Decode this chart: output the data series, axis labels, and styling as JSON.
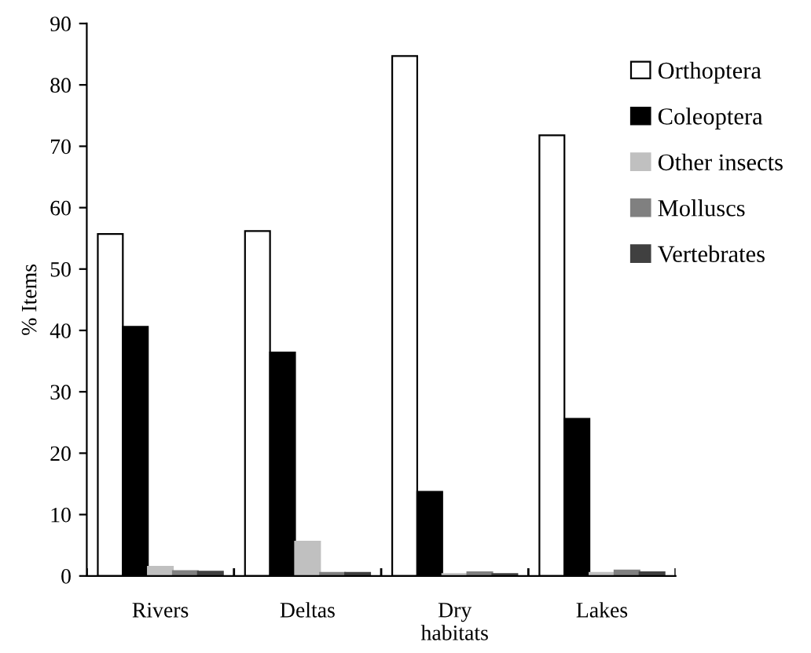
{
  "chart_data": {
    "type": "bar",
    "ylabel": "% Items",
    "categories": [
      "Rivers",
      "Deltas",
      "Dry\nhabitats",
      "Lakes"
    ],
    "series": [
      {
        "name": "Orthoptera",
        "color": "#ffffff",
        "values": [
          55.7,
          56.2,
          84.7,
          71.8
        ]
      },
      {
        "name": "Coleoptera",
        "color": "#000000",
        "values": [
          40.6,
          36.4,
          13.7,
          25.6
        ]
      },
      {
        "name": "Other insects",
        "color": "#c0c0c0",
        "values": [
          1.5,
          5.6,
          0.3,
          0.5
        ]
      },
      {
        "name": "Molluscs",
        "color": "#808080",
        "values": [
          0.8,
          0.5,
          0.6,
          0.9
        ]
      },
      {
        "name": "Vertebrates",
        "color": "#404040",
        "values": [
          0.7,
          0.5,
          0.3,
          0.6
        ]
      }
    ],
    "ylim": [
      0,
      90
    ],
    "yticks": [
      0,
      10,
      20,
      30,
      40,
      50,
      60,
      70,
      80,
      90
    ],
    "grid": false,
    "legend": "top right"
  }
}
